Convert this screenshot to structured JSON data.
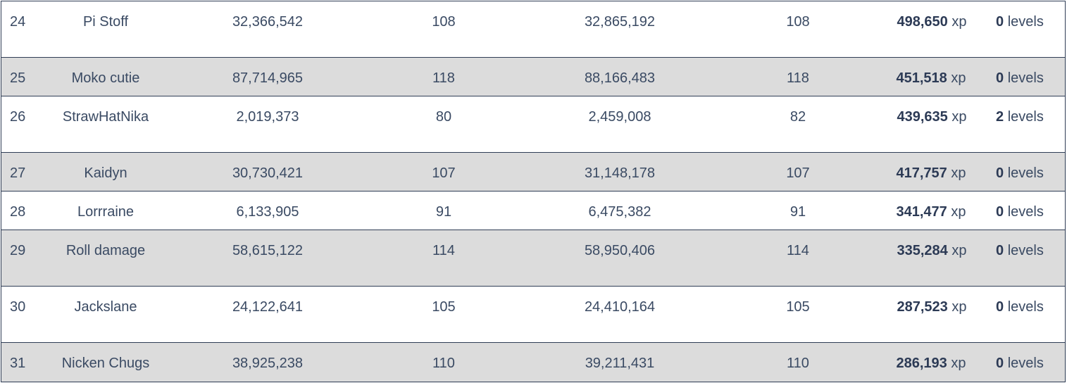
{
  "rows": [
    {
      "rank": "24",
      "name": "Pi Stoff",
      "xp_before": "32,366,542",
      "level_before": "108",
      "xp_after": "32,865,192",
      "level_after": "108",
      "xp_gain": "498,650",
      "xp_unit": "xp",
      "levels_gain": "0",
      "levels_unit": "levels"
    },
    {
      "rank": "25",
      "name": "Moko cutie",
      "xp_before": "87,714,965",
      "level_before": "118",
      "xp_after": "88,166,483",
      "level_after": "118",
      "xp_gain": "451,518",
      "xp_unit": "xp",
      "levels_gain": "0",
      "levels_unit": "levels"
    },
    {
      "rank": "26",
      "name": "StrawHatNika",
      "xp_before": "2,019,373",
      "level_before": "80",
      "xp_after": "2,459,008",
      "level_after": "82",
      "xp_gain": "439,635",
      "xp_unit": "xp",
      "levels_gain": "2",
      "levels_unit": "levels"
    },
    {
      "rank": "27",
      "name": "Kaidyn",
      "xp_before": "30,730,421",
      "level_before": "107",
      "xp_after": "31,148,178",
      "level_after": "107",
      "xp_gain": "417,757",
      "xp_unit": "xp",
      "levels_gain": "0",
      "levels_unit": "levels"
    },
    {
      "rank": "28",
      "name": "Lorrraine",
      "xp_before": "6,133,905",
      "level_before": "91",
      "xp_after": "6,475,382",
      "level_after": "91",
      "xp_gain": "341,477",
      "xp_unit": "xp",
      "levels_gain": "0",
      "levels_unit": "levels"
    },
    {
      "rank": "29",
      "name": "Roll damage",
      "xp_before": "58,615,122",
      "level_before": "114",
      "xp_after": "58,950,406",
      "level_after": "114",
      "xp_gain": "335,284",
      "xp_unit": "xp",
      "levels_gain": "0",
      "levels_unit": "levels"
    },
    {
      "rank": "30",
      "name": "Jackslane",
      "xp_before": "24,122,641",
      "level_before": "105",
      "xp_after": "24,410,164",
      "level_after": "105",
      "xp_gain": "287,523",
      "xp_unit": "xp",
      "levels_gain": "0",
      "levels_unit": "levels"
    },
    {
      "rank": "31",
      "name": "Nicken Chugs",
      "xp_before": "38,925,238",
      "level_before": "110",
      "xp_after": "39,211,431",
      "level_after": "110",
      "xp_gain": "286,193",
      "xp_unit": "xp",
      "levels_gain": "0",
      "levels_unit": "levels"
    }
  ]
}
